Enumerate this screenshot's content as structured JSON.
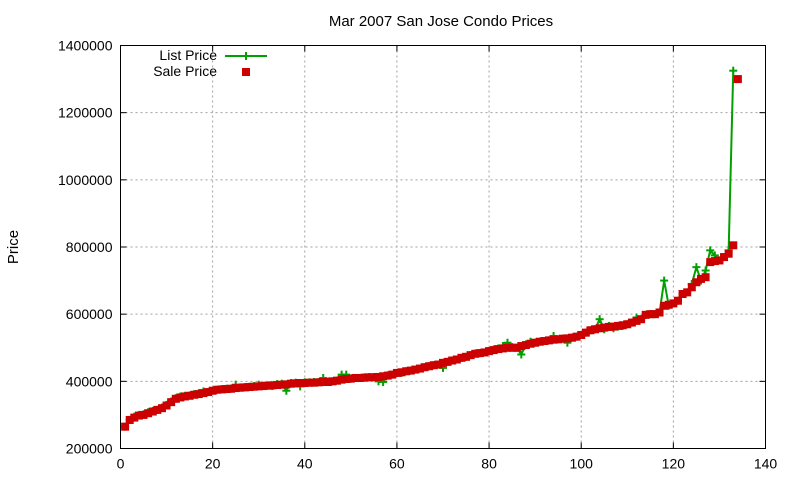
{
  "chart_data": {
    "type": "line",
    "title": "Mar 2007 San Jose Condo Prices",
    "xlabel": "",
    "ylabel": "Price",
    "xlim": [
      0,
      140
    ],
    "ylim": [
      200000,
      1400000
    ],
    "xticks": [
      "0",
      "20",
      "40",
      "60",
      "80",
      "100",
      "120",
      "140"
    ],
    "yticks": [
      "200000",
      "400000",
      "600000",
      "800000",
      "1000000",
      "1200000",
      "1400000"
    ],
    "grid": true,
    "legend_position": "top-left",
    "series": [
      {
        "name": "List Price",
        "color": "#00a000",
        "marker": "plus",
        "points": [
          [
            1,
            265000
          ],
          [
            2,
            285000
          ],
          [
            3,
            295000
          ],
          [
            4,
            300000
          ],
          [
            5,
            302000
          ],
          [
            6,
            308000
          ],
          [
            7,
            312000
          ],
          [
            8,
            315000
          ],
          [
            9,
            322000
          ],
          [
            10,
            330000
          ],
          [
            11,
            340000
          ],
          [
            12,
            350000
          ],
          [
            13,
            355000
          ],
          [
            14,
            357000
          ],
          [
            15,
            358000
          ],
          [
            16,
            362000
          ],
          [
            17,
            365000
          ],
          [
            18,
            370000
          ],
          [
            19,
            368000
          ],
          [
            20,
            372000
          ],
          [
            21,
            375000
          ],
          [
            22,
            377000
          ],
          [
            23,
            378000
          ],
          [
            24,
            378000
          ],
          [
            25,
            390000
          ],
          [
            26,
            382000
          ],
          [
            27,
            383000
          ],
          [
            28,
            384000
          ],
          [
            29,
            386000
          ],
          [
            30,
            390000
          ],
          [
            31,
            387000
          ],
          [
            32,
            388000
          ],
          [
            33,
            386000
          ],
          [
            34,
            392000
          ],
          [
            35,
            393000
          ],
          [
            36,
            372000
          ],
          [
            37,
            395000
          ],
          [
            38,
            396000
          ],
          [
            39,
            385000
          ],
          [
            40,
            397000
          ],
          [
            41,
            397000
          ],
          [
            42,
            398000
          ],
          [
            43,
            398000
          ],
          [
            44,
            410000
          ],
          [
            45,
            399000
          ],
          [
            46,
            400000
          ],
          [
            47,
            402000
          ],
          [
            48,
            420000
          ],
          [
            49,
            420000
          ],
          [
            50,
            408000
          ],
          [
            51,
            410000
          ],
          [
            52,
            410000
          ],
          [
            53,
            412000
          ],
          [
            54,
            413000
          ],
          [
            55,
            413000
          ],
          [
            56,
            400000
          ],
          [
            57,
            398000
          ],
          [
            58,
            418000
          ],
          [
            59,
            420000
          ],
          [
            60,
            425000
          ],
          [
            61,
            425000
          ],
          [
            62,
            430000
          ],
          [
            63,
            432000
          ],
          [
            64,
            435000
          ],
          [
            65,
            438000
          ],
          [
            66,
            442000
          ],
          [
            67,
            445000
          ],
          [
            68,
            448000
          ],
          [
            69,
            450000
          ],
          [
            70,
            440000
          ],
          [
            71,
            458000
          ],
          [
            72,
            462000
          ],
          [
            73,
            465000
          ],
          [
            74,
            470000
          ],
          [
            75,
            473000
          ],
          [
            76,
            478000
          ],
          [
            77,
            483000
          ],
          [
            78,
            484000
          ],
          [
            79,
            486000
          ],
          [
            80,
            490000
          ],
          [
            81,
            495000
          ],
          [
            82,
            498000
          ],
          [
            83,
            505000
          ],
          [
            84,
            515000
          ],
          [
            85,
            502000
          ],
          [
            86,
            500000
          ],
          [
            87,
            480000
          ],
          [
            88,
            510000
          ],
          [
            89,
            518000
          ],
          [
            90,
            515000
          ],
          [
            91,
            518000
          ],
          [
            92,
            520000
          ],
          [
            93,
            522000
          ],
          [
            94,
            535000
          ],
          [
            95,
            525000
          ],
          [
            96,
            527000
          ],
          [
            97,
            515000
          ],
          [
            98,
            530000
          ],
          [
            99,
            533000
          ],
          [
            100,
            538000
          ],
          [
            101,
            545000
          ],
          [
            102,
            552000
          ],
          [
            103,
            555000
          ],
          [
            104,
            585000
          ],
          [
            105,
            555000
          ],
          [
            106,
            565000
          ],
          [
            107,
            558000
          ],
          [
            108,
            563000
          ],
          [
            109,
            565000
          ],
          [
            110,
            570000
          ],
          [
            111,
            575000
          ],
          [
            112,
            590000
          ],
          [
            113,
            585000
          ],
          [
            114,
            598000
          ],
          [
            115,
            600000
          ],
          [
            116,
            600000
          ],
          [
            117,
            605000
          ],
          [
            118,
            700000
          ],
          [
            119,
            625000
          ],
          [
            120,
            632000
          ],
          [
            121,
            640000
          ],
          [
            122,
            660000
          ],
          [
            123,
            665000
          ],
          [
            124,
            690000
          ],
          [
            125,
            740000
          ],
          [
            126,
            700000
          ],
          [
            127,
            730000
          ],
          [
            128,
            790000
          ],
          [
            129,
            775000
          ],
          [
            130,
            760000
          ],
          [
            131,
            770000
          ],
          [
            132,
            790000
          ],
          [
            133,
            1325000
          ]
        ]
      },
      {
        "name": "Sale Price",
        "color": "#cc0000",
        "marker": "square",
        "points": [
          [
            1,
            265000
          ],
          [
            2,
            285000
          ],
          [
            3,
            292000
          ],
          [
            4,
            298000
          ],
          [
            5,
            300000
          ],
          [
            6,
            305000
          ],
          [
            7,
            310000
          ],
          [
            8,
            315000
          ],
          [
            9,
            320000
          ],
          [
            10,
            328000
          ],
          [
            11,
            338000
          ],
          [
            12,
            348000
          ],
          [
            13,
            352000
          ],
          [
            14,
            355000
          ],
          [
            15,
            357000
          ],
          [
            16,
            360000
          ],
          [
            17,
            362000
          ],
          [
            18,
            365000
          ],
          [
            19,
            368000
          ],
          [
            20,
            372000
          ],
          [
            21,
            375000
          ],
          [
            22,
            376000
          ],
          [
            23,
            377000
          ],
          [
            24,
            378000
          ],
          [
            25,
            380000
          ],
          [
            26,
            381000
          ],
          [
            27,
            382000
          ],
          [
            28,
            383000
          ],
          [
            29,
            384000
          ],
          [
            30,
            385000
          ],
          [
            31,
            386000
          ],
          [
            32,
            387000
          ],
          [
            33,
            388000
          ],
          [
            34,
            389000
          ],
          [
            35,
            390000
          ],
          [
            36,
            391000
          ],
          [
            37,
            393000
          ],
          [
            38,
            394000
          ],
          [
            39,
            395000
          ],
          [
            40,
            395000
          ],
          [
            41,
            396000
          ],
          [
            42,
            396000
          ],
          [
            43,
            397000
          ],
          [
            44,
            398000
          ],
          [
            45,
            398000
          ],
          [
            46,
            400000
          ],
          [
            47,
            402000
          ],
          [
            48,
            405000
          ],
          [
            49,
            407000
          ],
          [
            50,
            408000
          ],
          [
            51,
            410000
          ],
          [
            52,
            410000
          ],
          [
            53,
            411000
          ],
          [
            54,
            412000
          ],
          [
            55,
            412000
          ],
          [
            56,
            413000
          ],
          [
            57,
            415000
          ],
          [
            58,
            417000
          ],
          [
            59,
            420000
          ],
          [
            60,
            425000
          ],
          [
            61,
            427000
          ],
          [
            62,
            430000
          ],
          [
            63,
            432000
          ],
          [
            64,
            435000
          ],
          [
            65,
            438000
          ],
          [
            66,
            442000
          ],
          [
            67,
            445000
          ],
          [
            68,
            448000
          ],
          [
            69,
            450000
          ],
          [
            70,
            455000
          ],
          [
            71,
            458000
          ],
          [
            72,
            462000
          ],
          [
            73,
            465000
          ],
          [
            74,
            470000
          ],
          [
            75,
            473000
          ],
          [
            76,
            478000
          ],
          [
            77,
            482000
          ],
          [
            78,
            484000
          ],
          [
            79,
            486000
          ],
          [
            80,
            490000
          ],
          [
            81,
            493000
          ],
          [
            82,
            496000
          ],
          [
            83,
            498000
          ],
          [
            84,
            500000
          ],
          [
            85,
            500000
          ],
          [
            86,
            500000
          ],
          [
            87,
            505000
          ],
          [
            88,
            508000
          ],
          [
            89,
            512000
          ],
          [
            90,
            515000
          ],
          [
            91,
            518000
          ],
          [
            92,
            520000
          ],
          [
            93,
            522000
          ],
          [
            94,
            524000
          ],
          [
            95,
            525000
          ],
          [
            96,
            527000
          ],
          [
            97,
            528000
          ],
          [
            98,
            530000
          ],
          [
            99,
            533000
          ],
          [
            100,
            538000
          ],
          [
            101,
            545000
          ],
          [
            102,
            552000
          ],
          [
            103,
            555000
          ],
          [
            104,
            558000
          ],
          [
            105,
            560000
          ],
          [
            106,
            562000
          ],
          [
            107,
            563000
          ],
          [
            108,
            565000
          ],
          [
            109,
            567000
          ],
          [
            110,
            570000
          ],
          [
            111,
            575000
          ],
          [
            112,
            580000
          ],
          [
            113,
            585000
          ],
          [
            114,
            598000
          ],
          [
            115,
            600000
          ],
          [
            116,
            600000
          ],
          [
            117,
            605000
          ],
          [
            118,
            625000
          ],
          [
            119,
            628000
          ],
          [
            120,
            632000
          ],
          [
            121,
            640000
          ],
          [
            122,
            660000
          ],
          [
            123,
            665000
          ],
          [
            124,
            680000
          ],
          [
            125,
            695000
          ],
          [
            126,
            705000
          ],
          [
            127,
            710000
          ],
          [
            128,
            755000
          ],
          [
            129,
            758000
          ],
          [
            130,
            760000
          ],
          [
            131,
            770000
          ],
          [
            132,
            780000
          ],
          [
            133,
            805000
          ],
          [
            134,
            1300000
          ]
        ]
      }
    ]
  }
}
